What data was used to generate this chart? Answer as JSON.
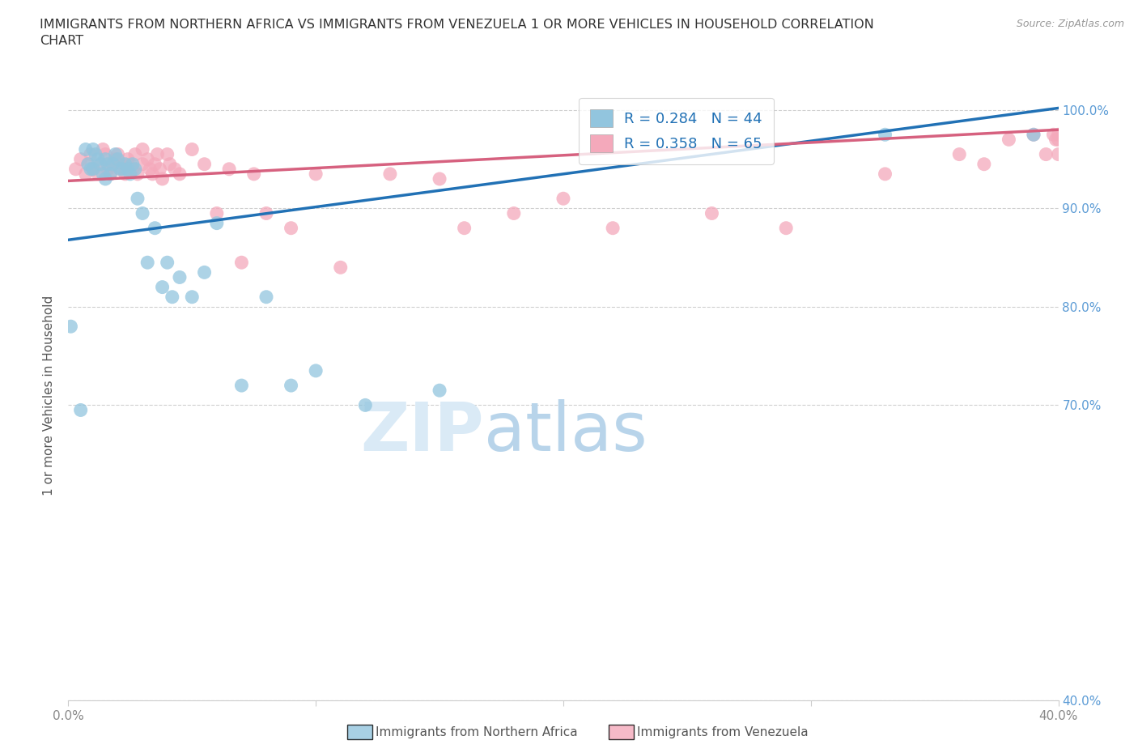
{
  "title": "IMMIGRANTS FROM NORTHERN AFRICA VS IMMIGRANTS FROM VENEZUELA 1 OR MORE VEHICLES IN HOUSEHOLD CORRELATION\nCHART",
  "source_text": "Source: ZipAtlas.com",
  "ylabel": "1 or more Vehicles in Household",
  "xlim": [
    0.0,
    0.4
  ],
  "ylim": [
    0.4,
    1.02
  ],
  "legend_blue_R": "0.284",
  "legend_blue_N": "44",
  "legend_pink_R": "0.358",
  "legend_pink_N": "65",
  "blue_color": "#92c5de",
  "pink_color": "#f4a9bb",
  "blue_line_color": "#2171b5",
  "pink_line_color": "#d6617f",
  "blue_scatter_x": [
    0.001,
    0.005,
    0.007,
    0.008,
    0.009,
    0.01,
    0.01,
    0.011,
    0.012,
    0.013,
    0.014,
    0.015,
    0.015,
    0.016,
    0.017,
    0.018,
    0.019,
    0.02,
    0.021,
    0.022,
    0.023,
    0.024,
    0.025,
    0.026,
    0.027,
    0.028,
    0.03,
    0.032,
    0.035,
    0.038,
    0.04,
    0.042,
    0.045,
    0.05,
    0.055,
    0.06,
    0.07,
    0.08,
    0.09,
    0.1,
    0.12,
    0.15,
    0.33,
    0.39
  ],
  "blue_scatter_y": [
    0.78,
    0.695,
    0.96,
    0.945,
    0.94,
    0.96,
    0.94,
    0.955,
    0.95,
    0.945,
    0.935,
    0.95,
    0.93,
    0.945,
    0.935,
    0.945,
    0.955,
    0.95,
    0.94,
    0.94,
    0.945,
    0.94,
    0.935,
    0.945,
    0.94,
    0.91,
    0.895,
    0.845,
    0.88,
    0.82,
    0.845,
    0.81,
    0.83,
    0.81,
    0.835,
    0.885,
    0.72,
    0.81,
    0.72,
    0.735,
    0.7,
    0.715,
    0.975,
    0.975
  ],
  "pink_scatter_x": [
    0.003,
    0.005,
    0.007,
    0.008,
    0.009,
    0.01,
    0.012,
    0.013,
    0.014,
    0.015,
    0.016,
    0.017,
    0.018,
    0.019,
    0.02,
    0.021,
    0.022,
    0.023,
    0.024,
    0.025,
    0.026,
    0.027,
    0.028,
    0.03,
    0.03,
    0.032,
    0.033,
    0.034,
    0.035,
    0.036,
    0.037,
    0.038,
    0.04,
    0.041,
    0.043,
    0.045,
    0.05,
    0.055,
    0.06,
    0.065,
    0.07,
    0.075,
    0.08,
    0.09,
    0.1,
    0.11,
    0.13,
    0.15,
    0.16,
    0.18,
    0.2,
    0.22,
    0.26,
    0.29,
    0.33,
    0.36,
    0.37,
    0.38,
    0.39,
    0.395,
    0.398,
    0.399,
    0.4,
    0.4,
    0.4
  ],
  "pink_scatter_y": [
    0.94,
    0.95,
    0.935,
    0.945,
    0.955,
    0.94,
    0.935,
    0.945,
    0.96,
    0.955,
    0.94,
    0.935,
    0.945,
    0.95,
    0.955,
    0.94,
    0.945,
    0.935,
    0.95,
    0.945,
    0.94,
    0.955,
    0.935,
    0.945,
    0.96,
    0.95,
    0.94,
    0.935,
    0.945,
    0.955,
    0.94,
    0.93,
    0.955,
    0.945,
    0.94,
    0.935,
    0.96,
    0.945,
    0.895,
    0.94,
    0.845,
    0.935,
    0.895,
    0.88,
    0.935,
    0.84,
    0.935,
    0.93,
    0.88,
    0.895,
    0.91,
    0.88,
    0.895,
    0.88,
    0.935,
    0.955,
    0.945,
    0.97,
    0.975,
    0.955,
    0.975,
    0.97,
    0.975,
    0.955,
    0.97
  ]
}
